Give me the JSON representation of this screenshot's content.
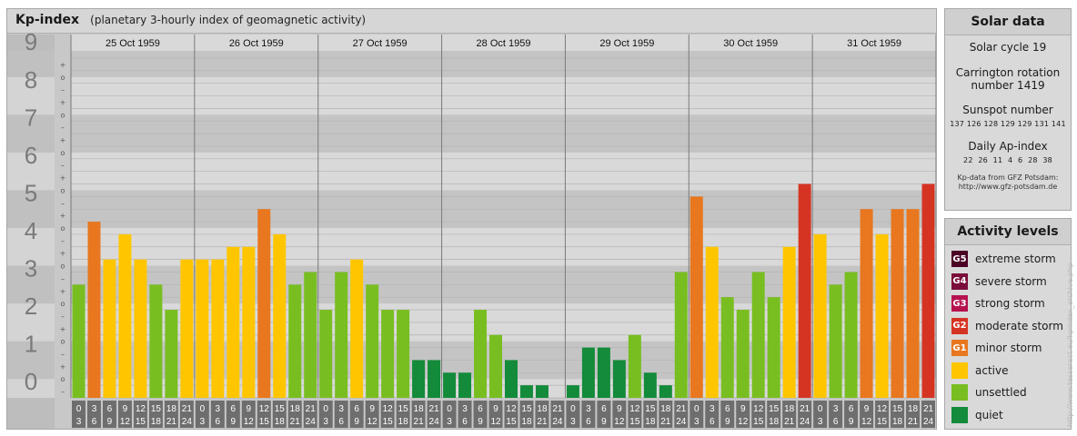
{
  "header": {
    "title": "Kp-index",
    "subtitle": "(planetary 3-hourly index of geomagnetic activity)"
  },
  "chart_data": {
    "type": "bar",
    "ylim": [
      0,
      9
    ],
    "y_tick_labels": [
      "0",
      "1",
      "2",
      "3",
      "4",
      "5",
      "6",
      "7",
      "8",
      "9"
    ],
    "sub_tick_labels": [
      "–",
      "o",
      "+"
    ],
    "days": [
      "25 Oct 1959",
      "26 Oct 1959",
      "27 Oct 1959",
      "28 Oct 1959",
      "29 Oct 1959",
      "30 Oct 1959",
      "31 Oct 1959"
    ],
    "interval_start_labels": [
      "0",
      "3",
      "6",
      "9",
      "12",
      "15",
      "18",
      "21"
    ],
    "interval_end_labels": [
      "3",
      "6",
      "9",
      "12",
      "15",
      "18",
      "21",
      "24"
    ],
    "values": [
      3.0,
      4.667,
      3.667,
      4.333,
      3.667,
      3.0,
      2.333,
      3.667,
      3.667,
      3.667,
      4.0,
      4.0,
      5.0,
      4.333,
      3.0,
      3.333,
      2.333,
      3.333,
      3.667,
      3.0,
      2.333,
      2.333,
      1.0,
      1.0,
      0.667,
      0.667,
      2.333,
      1.667,
      1.0,
      0.333,
      0.333,
      0.0,
      0.333,
      1.333,
      1.333,
      1.0,
      1.667,
      0.667,
      0.333,
      3.333,
      5.333,
      4.0,
      2.667,
      2.333,
      3.333,
      2.667,
      4.0,
      5.667,
      4.333,
      3.0,
      3.333,
      5.0,
      4.333,
      5.0,
      5.0,
      5.667
    ],
    "colors": {
      "quiet": "#138b3a",
      "unsettled": "#78be21",
      "active": "#ffc600",
      "minor": "#e8771f",
      "moderate": "#d63423",
      "strong": "#b5124f",
      "severe": "#7b0d3a",
      "extreme": "#4b0224"
    }
  },
  "solar": {
    "title": "Solar data",
    "cycle": "Solar cycle 19",
    "carrington_line1": "Carrington rotation",
    "carrington_line2": "number 1419",
    "sunspot_title": "Sunspot number",
    "sunspot_values": "137 126 128 129 129 131 141",
    "ap_title": "Daily Ap-index",
    "ap_values": "22  26  11  4  6  28  38",
    "source_line1": "Kp-data from GFZ Potsdam:",
    "source_line2": "http://www.gfz-potsdam.de"
  },
  "activity": {
    "title": "Activity levels",
    "items": [
      {
        "badge": "G5",
        "label": "extreme storm",
        "color": "#4b0224"
      },
      {
        "badge": "G4",
        "label": "severe storm",
        "color": "#7b0d3a"
      },
      {
        "badge": "G3",
        "label": "strong storm",
        "color": "#b5124f"
      },
      {
        "badge": "G2",
        "label": "moderate storm",
        "color": "#d63423"
      },
      {
        "badge": "G1",
        "label": "minor storm",
        "color": "#e8771f"
      },
      {
        "badge": "",
        "label": "active",
        "color": "#ffc600"
      },
      {
        "badge": "",
        "label": "unsettled",
        "color": "#78be21"
      },
      {
        "badge": "",
        "label": "quiet",
        "color": "#138b3a"
      }
    ]
  },
  "credit": "http://www.tesseract.eu/kpindex_archive.php"
}
